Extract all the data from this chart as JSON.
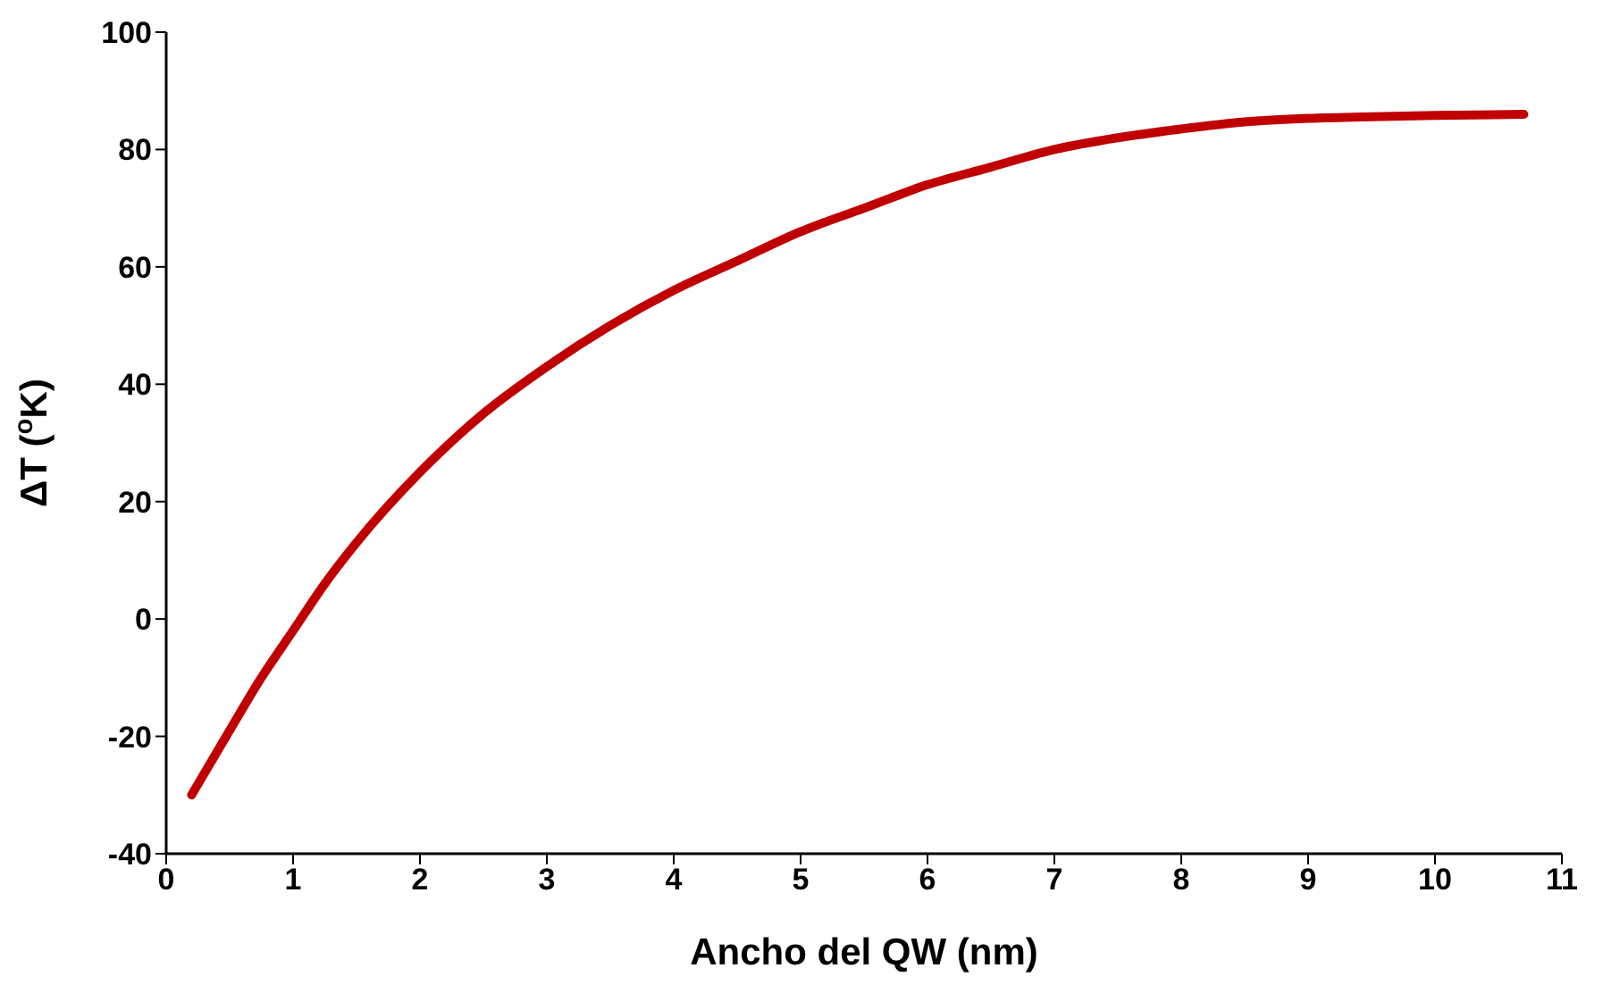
{
  "chart_data": {
    "type": "line",
    "xlabel": "Ancho del QW (nm)",
    "ylabel": "ΔT ($^{o}$K)",
    "xlim": [
      0,
      11
    ],
    "xticks": [
      0,
      1,
      2,
      3,
      4,
      5,
      6,
      7,
      8,
      9,
      10,
      11
    ],
    "ylim": [
      -40,
      100
    ],
    "yticks": [
      -40,
      -20,
      0,
      20,
      40,
      60,
      80,
      100
    ],
    "grid": false,
    "legend": false,
    "marker": "none",
    "line_style": "solid",
    "series": [
      {
        "color": "#c00000",
        "x": [
          0.2,
          0.5,
          0.75,
          1,
          1.25,
          1.5,
          2,
          2.5,
          3,
          3.5,
          4,
          4.5,
          5,
          5.5,
          6,
          6.5,
          7,
          7.5,
          8,
          8.5,
          9,
          9.5,
          10,
          10.7
        ],
        "values": [
          -30,
          -19,
          -10,
          -2,
          6,
          13,
          25,
          35,
          43,
          50,
          56,
          61,
          66,
          70,
          74,
          77,
          80,
          82,
          83.5,
          84.7,
          85.3,
          85.6,
          85.8,
          86
        ]
      }
    ]
  }
}
